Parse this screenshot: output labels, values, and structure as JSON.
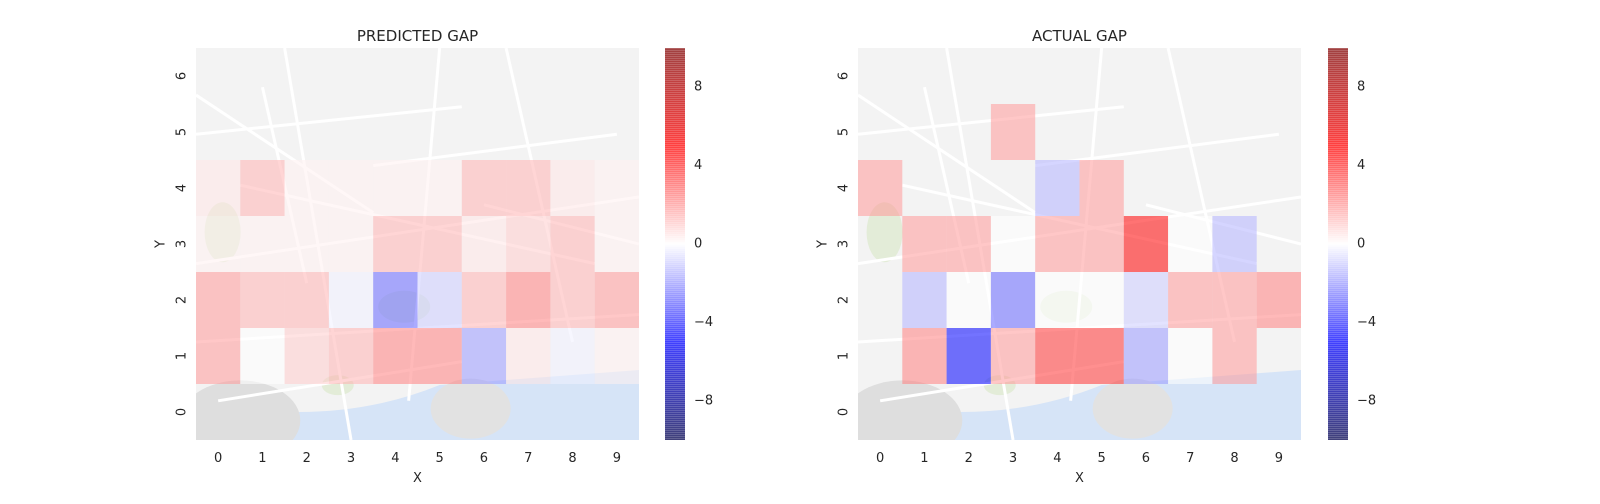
{
  "chart_data": [
    {
      "type": "heatmap",
      "title": "PREDICTED GAP",
      "xlabel": "X",
      "ylabel": "Y",
      "x": [
        0,
        1,
        2,
        3,
        4,
        5,
        6,
        7,
        8,
        9
      ],
      "y": [
        0,
        1,
        2,
        3,
        4,
        5,
        6
      ],
      "xlim": [
        -0.5,
        9.5
      ],
      "ylim": [
        -0.5,
        6.5
      ],
      "background": "street map",
      "cells": [
        {
          "x": 0,
          "y": 1,
          "value": 2.0
        },
        {
          "x": 1,
          "y": 1,
          "value": 0.0
        },
        {
          "x": 2,
          "y": 1,
          "value": 1.0
        },
        {
          "x": 3,
          "y": 1,
          "value": 1.5
        },
        {
          "x": 4,
          "y": 1,
          "value": 2.5
        },
        {
          "x": 5,
          "y": 1,
          "value": 2.5
        },
        {
          "x": 6,
          "y": 1,
          "value": -2.0
        },
        {
          "x": 7,
          "y": 1,
          "value": 0.5
        },
        {
          "x": 8,
          "y": 1,
          "value": -0.3
        },
        {
          "x": 9,
          "y": 1,
          "value": 0.3
        },
        {
          "x": 0,
          "y": 2,
          "value": 2.0
        },
        {
          "x": 1,
          "y": 2,
          "value": 1.5
        },
        {
          "x": 2,
          "y": 2,
          "value": 1.5
        },
        {
          "x": 3,
          "y": 2,
          "value": -0.3
        },
        {
          "x": 4,
          "y": 2,
          "value": -3.0
        },
        {
          "x": 5,
          "y": 2,
          "value": -1.0
        },
        {
          "x": 6,
          "y": 2,
          "value": 1.5
        },
        {
          "x": 7,
          "y": 2,
          "value": 2.5
        },
        {
          "x": 8,
          "y": 2,
          "value": 1.5
        },
        {
          "x": 9,
          "y": 2,
          "value": 2.0
        },
        {
          "x": 0,
          "y": 3,
          "value": 0.3
        },
        {
          "x": 1,
          "y": 3,
          "value": 0.3
        },
        {
          "x": 2,
          "y": 3,
          "value": 0.3
        },
        {
          "x": 3,
          "y": 3,
          "value": 0.3
        },
        {
          "x": 4,
          "y": 3,
          "value": 1.5
        },
        {
          "x": 5,
          "y": 3,
          "value": 1.5
        },
        {
          "x": 6,
          "y": 3,
          "value": 0.5
        },
        {
          "x": 7,
          "y": 3,
          "value": 1.0
        },
        {
          "x": 8,
          "y": 3,
          "value": 1.5
        },
        {
          "x": 9,
          "y": 3,
          "value": 0.3
        },
        {
          "x": 0,
          "y": 4,
          "value": 0.5
        },
        {
          "x": 1,
          "y": 4,
          "value": 1.5
        },
        {
          "x": 2,
          "y": 4,
          "value": 0.3
        },
        {
          "x": 3,
          "y": 4,
          "value": 0.3
        },
        {
          "x": 4,
          "y": 4,
          "value": 0.3
        },
        {
          "x": 5,
          "y": 4,
          "value": 0.3
        },
        {
          "x": 6,
          "y": 4,
          "value": 1.5
        },
        {
          "x": 7,
          "y": 4,
          "value": 1.5
        },
        {
          "x": 8,
          "y": 4,
          "value": 0.5
        },
        {
          "x": 9,
          "y": 4,
          "value": 0.3
        }
      ]
    },
    {
      "type": "heatmap",
      "title": "ACTUAL GAP",
      "xlabel": "X",
      "ylabel": "Y",
      "x": [
        0,
        1,
        2,
        3,
        4,
        5,
        6,
        7,
        8,
        9
      ],
      "y": [
        0,
        1,
        2,
        3,
        4,
        5,
        6
      ],
      "xlim": [
        -0.5,
        9.5
      ],
      "ylim": [
        -0.5,
        6.5
      ],
      "background": "street map",
      "cells": [
        {
          "x": 1,
          "y": 1,
          "value": 2.5
        },
        {
          "x": 2,
          "y": 1,
          "value": -5.0
        },
        {
          "x": 3,
          "y": 1,
          "value": 2.0
        },
        {
          "x": 4,
          "y": 1,
          "value": 4.0
        },
        {
          "x": 5,
          "y": 1,
          "value": 4.0
        },
        {
          "x": 6,
          "y": 1,
          "value": -2.0
        },
        {
          "x": 7,
          "y": 1,
          "value": 0.0
        },
        {
          "x": 8,
          "y": 1,
          "value": 2.0
        },
        {
          "x": 1,
          "y": 2,
          "value": -1.5
        },
        {
          "x": 2,
          "y": 2,
          "value": 0.0
        },
        {
          "x": 3,
          "y": 2,
          "value": -3.0
        },
        {
          "x": 4,
          "y": 2,
          "value": 0.0
        },
        {
          "x": 5,
          "y": 2,
          "value": 0.0
        },
        {
          "x": 6,
          "y": 2,
          "value": -1.0
        },
        {
          "x": 7,
          "y": 2,
          "value": 2.0
        },
        {
          "x": 8,
          "y": 2,
          "value": 2.0
        },
        {
          "x": 9,
          "y": 2,
          "value": 2.5
        },
        {
          "x": 1,
          "y": 3,
          "value": 2.0
        },
        {
          "x": 2,
          "y": 3,
          "value": 2.0
        },
        {
          "x": 3,
          "y": 3,
          "value": 0.0
        },
        {
          "x": 4,
          "y": 3,
          "value": 2.0
        },
        {
          "x": 5,
          "y": 3,
          "value": 2.0
        },
        {
          "x": 6,
          "y": 3,
          "value": 5.0
        },
        {
          "x": 7,
          "y": 3,
          "value": 0.0
        },
        {
          "x": 8,
          "y": 3,
          "value": -1.5
        },
        {
          "x": 0,
          "y": 4,
          "value": 2.0
        },
        {
          "x": 4,
          "y": 4,
          "value": -1.5
        },
        {
          "x": 5,
          "y": 4,
          "value": 2.0
        },
        {
          "x": 3,
          "y": 5,
          "value": 2.0
        }
      ]
    }
  ],
  "colorbar": {
    "vmin": -10,
    "vmax": 10,
    "ticks": [
      -8,
      -4,
      0,
      4,
      8
    ],
    "tick_labels": [
      "−8",
      "−4",
      "0",
      "4",
      "8"
    ],
    "colormap": "seismic"
  }
}
